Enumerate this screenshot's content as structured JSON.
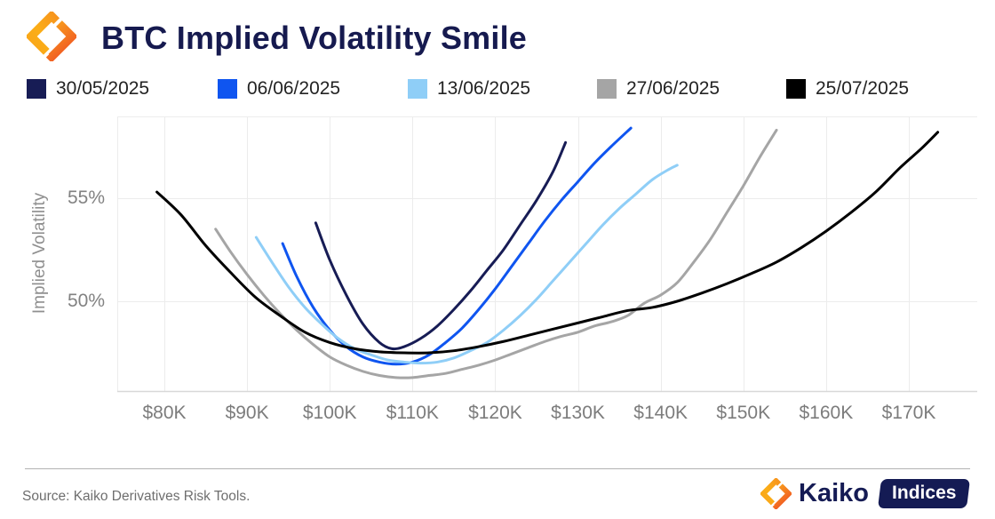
{
  "header": {
    "title": "BTC Implied Volatility Smile"
  },
  "brand": {
    "name": "Kaiko",
    "badge": "Indices"
  },
  "footer": {
    "source": "Source: Kaiko Derivatives Risk Tools."
  },
  "colors": {
    "title_navy": "#161a4f",
    "navy": "#171c55",
    "blue": "#0f55f0",
    "light_blue": "#8fcef7",
    "gray": "#a5a5a5",
    "black": "#000000",
    "grid": "#ececec",
    "axis_line": "#d8d8d8",
    "tick_text": "#7c7c7c",
    "badge_bg": "#141b54",
    "logo_orange_light": "#FBAE17",
    "logo_orange_dark": "#F15A24"
  },
  "legend": {
    "items": [
      {
        "label": "30/05/2025",
        "color_key": "navy"
      },
      {
        "label": "06/06/2025",
        "color_key": "blue"
      },
      {
        "label": "13/06/2025",
        "color_key": "light_blue"
      },
      {
        "label": "27/06/2025",
        "color_key": "gray"
      },
      {
        "label": "25/07/2025",
        "color_key": "black"
      }
    ]
  },
  "chart_data": {
    "type": "line",
    "title": "BTC Implied Volatility Smile",
    "xlabel": "",
    "ylabel": "Implied Volatility",
    "x_unit": "strike price, thousands of USD",
    "y_unit": "percent",
    "xlim": [
      74.3,
      178.3
    ],
    "ylim": [
      45.6,
      59.0
    ],
    "grid": true,
    "legend_position": "top",
    "x_ticks": [
      80,
      90,
      100,
      110,
      120,
      130,
      140,
      150,
      160,
      170
    ],
    "x_tick_labels": [
      "$80K",
      "$90K",
      "$100K",
      "$110K",
      "$120K",
      "$130K",
      "$140K",
      "$150K",
      "$160K",
      "$170K"
    ],
    "y_ticks": [
      50,
      55
    ],
    "y_tick_labels": [
      "50%",
      "55%"
    ],
    "series": [
      {
        "name": "30/05/2025",
        "color_key": "navy",
        "points": [
          [
            98.3,
            53.8
          ],
          [
            100,
            52.0
          ],
          [
            102,
            50.3
          ],
          [
            104,
            48.9
          ],
          [
            106,
            48.0
          ],
          [
            107.5,
            47.7
          ],
          [
            109,
            47.8
          ],
          [
            111,
            48.2
          ],
          [
            113,
            48.8
          ],
          [
            115,
            49.6
          ],
          [
            117,
            50.5
          ],
          [
            119,
            51.5
          ],
          [
            121,
            52.5
          ],
          [
            123,
            53.7
          ],
          [
            125,
            54.9
          ],
          [
            127,
            56.3
          ],
          [
            128.5,
            57.7
          ]
        ]
      },
      {
        "name": "06/06/2025",
        "color_key": "blue",
        "points": [
          [
            94.3,
            52.8
          ],
          [
            96,
            51.2
          ],
          [
            98,
            49.7
          ],
          [
            100,
            48.6
          ],
          [
            102,
            47.8
          ],
          [
            104,
            47.3
          ],
          [
            106,
            47.05
          ],
          [
            108,
            46.95
          ],
          [
            110,
            47.05
          ],
          [
            112,
            47.4
          ],
          [
            114,
            48.0
          ],
          [
            116,
            48.7
          ],
          [
            118,
            49.6
          ],
          [
            120,
            50.6
          ],
          [
            122,
            51.7
          ],
          [
            124,
            52.8
          ],
          [
            126,
            53.9
          ],
          [
            128,
            54.9
          ],
          [
            130,
            55.8
          ],
          [
            132,
            56.7
          ],
          [
            134,
            57.5
          ],
          [
            136.4,
            58.4
          ]
        ]
      },
      {
        "name": "13/06/2025",
        "color_key": "light_blue",
        "points": [
          [
            91.1,
            53.1
          ],
          [
            93,
            51.9
          ],
          [
            95,
            50.7
          ],
          [
            97,
            49.7
          ],
          [
            99,
            48.9
          ],
          [
            101,
            48.2
          ],
          [
            103,
            47.7
          ],
          [
            105,
            47.4
          ],
          [
            107,
            47.15
          ],
          [
            109,
            47.05
          ],
          [
            111,
            47.0
          ],
          [
            113,
            47.05
          ],
          [
            115,
            47.25
          ],
          [
            117,
            47.6
          ],
          [
            119,
            48.0
          ],
          [
            121,
            48.6
          ],
          [
            123,
            49.3
          ],
          [
            125,
            50.1
          ],
          [
            127,
            51.0
          ],
          [
            129,
            51.9
          ],
          [
            131,
            52.8
          ],
          [
            133,
            53.7
          ],
          [
            135,
            54.5
          ],
          [
            137,
            55.2
          ],
          [
            139,
            55.9
          ],
          [
            141,
            56.4
          ],
          [
            142,
            56.6
          ]
        ]
      },
      {
        "name": "27/06/2025",
        "color_key": "gray",
        "points": [
          [
            86.2,
            53.5
          ],
          [
            88,
            52.4
          ],
          [
            90,
            51.3
          ],
          [
            92,
            50.3
          ],
          [
            94,
            49.4
          ],
          [
            96,
            48.6
          ],
          [
            98,
            47.9
          ],
          [
            100,
            47.3
          ],
          [
            102,
            46.9
          ],
          [
            104,
            46.6
          ],
          [
            106,
            46.4
          ],
          [
            108,
            46.3
          ],
          [
            110,
            46.3
          ],
          [
            112,
            46.4
          ],
          [
            114,
            46.5
          ],
          [
            116,
            46.7
          ],
          [
            118,
            46.9
          ],
          [
            120,
            47.15
          ],
          [
            122,
            47.45
          ],
          [
            124,
            47.75
          ],
          [
            126,
            48.05
          ],
          [
            128,
            48.3
          ],
          [
            130,
            48.5
          ],
          [
            132,
            48.8
          ],
          [
            134,
            49.0
          ],
          [
            136,
            49.3
          ],
          [
            138,
            49.9
          ],
          [
            140,
            50.3
          ],
          [
            142,
            50.9
          ],
          [
            144,
            51.9
          ],
          [
            146,
            53.0
          ],
          [
            148,
            54.3
          ],
          [
            150,
            55.6
          ],
          [
            152,
            57.0
          ],
          [
            154,
            58.3
          ]
        ]
      },
      {
        "name": "25/07/2025",
        "color_key": "black",
        "points": [
          [
            79.1,
            55.3
          ],
          [
            82,
            54.2
          ],
          [
            85,
            52.7
          ],
          [
            88,
            51.4
          ],
          [
            91,
            50.2
          ],
          [
            94,
            49.3
          ],
          [
            97,
            48.5
          ],
          [
            100,
            48.0
          ],
          [
            103,
            47.7
          ],
          [
            106,
            47.55
          ],
          [
            109,
            47.5
          ],
          [
            112,
            47.5
          ],
          [
            115,
            47.6
          ],
          [
            118,
            47.8
          ],
          [
            121,
            48.05
          ],
          [
            124,
            48.35
          ],
          [
            127,
            48.65
          ],
          [
            130,
            48.95
          ],
          [
            133,
            49.25
          ],
          [
            136,
            49.55
          ],
          [
            139,
            49.7
          ],
          [
            142,
            50.0
          ],
          [
            145,
            50.4
          ],
          [
            148,
            50.85
          ],
          [
            151,
            51.35
          ],
          [
            154,
            51.9
          ],
          [
            157,
            52.6
          ],
          [
            160,
            53.4
          ],
          [
            163,
            54.3
          ],
          [
            166,
            55.3
          ],
          [
            169,
            56.5
          ],
          [
            171.5,
            57.4
          ],
          [
            173.5,
            58.2
          ]
        ]
      }
    ]
  }
}
